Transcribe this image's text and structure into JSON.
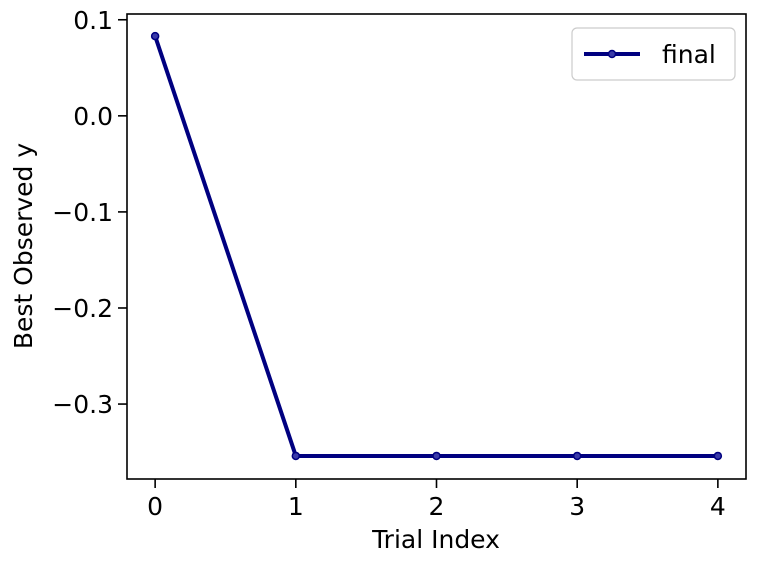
{
  "chart_data": {
    "type": "line",
    "title": "",
    "xlabel": "Trial Index",
    "ylabel": "Best Observed y",
    "xlim": [
      -0.2,
      4.2
    ],
    "ylim": [
      -0.378,
      0.106
    ],
    "x_ticks": [
      {
        "value": 0,
        "label": "0"
      },
      {
        "value": 1,
        "label": "1"
      },
      {
        "value": 2,
        "label": "2"
      },
      {
        "value": 3,
        "label": "3"
      },
      {
        "value": 4,
        "label": "4"
      }
    ],
    "y_ticks": [
      {
        "value": 0.1,
        "label": "0.1"
      },
      {
        "value": 0.0,
        "label": "0.0"
      },
      {
        "value": -0.1,
        "label": "−0.1"
      },
      {
        "value": -0.2,
        "label": "−0.2"
      },
      {
        "value": -0.3,
        "label": "−0.3"
      }
    ],
    "grid": false,
    "legend_position": "top-right",
    "series": [
      {
        "name": "final",
        "color": "#000080",
        "marker": "circle",
        "x": [
          0,
          1,
          2,
          3,
          4
        ],
        "y": [
          0.083,
          -0.354,
          -0.354,
          -0.354,
          -0.354
        ]
      }
    ]
  }
}
